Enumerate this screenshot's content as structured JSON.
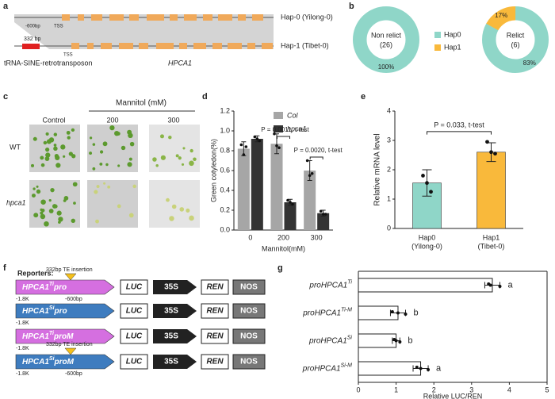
{
  "panel_labels": [
    "a",
    "b",
    "c",
    "d",
    "e",
    "f",
    "g"
  ],
  "gene_diagram": {
    "upstream": "-600bp",
    "tss_1": "TSS",
    "insertion": "332 bp",
    "tss_2": "TSS",
    "te": "tRNA-SINE-retrotransposon",
    "gene": "HPCA1",
    "haplotypes": [
      "Hap-0 (Yilong-0)",
      "Hap-1 (Tibet-0)"
    ]
  },
  "phenotype": {
    "control": "Control",
    "treatment": "Mannitol (mM)",
    "doses": [
      "200",
      "300"
    ],
    "genotypes": [
      "WT",
      "hpca1"
    ]
  },
  "reporters": {
    "title": "Reporters:",
    "insertion": "332bp TE insertion",
    "position": "-600bp",
    "start": "-1.8K",
    "parts": [
      "LUC",
      "35S",
      "REN",
      "NOS"
    ],
    "constructs": [
      {
        "gene": "HPCA1",
        "sup": "Ti",
        "suffix": "pro",
        "color": "#d56fe0",
        "te": true
      },
      {
        "gene": "HPCA1",
        "sup": "Si",
        "suffix": "pro",
        "color": "#3e7cbf",
        "te": false
      },
      {
        "gene": "HPCA1",
        "sup": "Ti",
        "suffix": "proM",
        "color": "#d56fe0",
        "te": false
      },
      {
        "gene": "HPCA1",
        "sup": "Si",
        "suffix": "proM",
        "color": "#3e7cbf",
        "te": true
      }
    ]
  },
  "chart_data": [
    {
      "type": "pie",
      "center_label": [
        "Non relict",
        "(26)"
      ],
      "categories": [
        "Hap0",
        "Hap1"
      ],
      "values": [
        100,
        0
      ],
      "value_labels": [
        "100%",
        null
      ],
      "colors": [
        "#8fd6c8",
        "#f9b93b"
      ]
    },
    {
      "type": "pie",
      "center_label": [
        "Relict",
        "(6)"
      ],
      "categories": [
        "Hap0",
        "Hap1"
      ],
      "values": [
        83,
        17
      ],
      "value_labels": [
        "83%",
        "17%"
      ],
      "colors": [
        "#8fd6c8",
        "#f9b93b"
      ]
    },
    {
      "type": "bar",
      "ylabel": "Green cotyledon(%)",
      "xlabel": "Mannitol(mM)",
      "categories": [
        "0",
        "200",
        "300"
      ],
      "series": [
        {
          "name": "Col",
          "color": "#a6a6a6",
          "values": [
            0.82,
            0.87,
            0.6
          ],
          "errors": [
            0.07,
            0.1,
            0.1
          ],
          "points": [
            [
              0.86,
              0.76,
              0.84
            ],
            [
              0.97,
              0.85,
              0.83
            ],
            [
              0.7,
              0.55,
              0.57
            ]
          ]
        },
        {
          "name": "hpca1",
          "color": "#333333",
          "values": [
            0.92,
            0.28,
            0.17
          ],
          "errors": [
            0.03,
            0.03,
            0.03
          ],
          "points": [
            [
              0.94,
              0.92,
              0.9
            ],
            [
              0.3,
              0.28,
              0.26
            ],
            [
              0.19,
              0.16,
              0.16
            ]
          ]
        }
      ],
      "annotations": [
        "P = 0.0011, t-test",
        "P = 0.0020, t-test"
      ],
      "ylim": [
        0,
        1.2
      ],
      "yticks": [
        {
          "value": 0,
          "label": "0.0"
        },
        0.2,
        0.4,
        0.6,
        0.8,
        {
          "value": 1,
          "label": "1.0"
        },
        1.2
      ]
    },
    {
      "type": "bar",
      "ylabel": "Relative mRNA level",
      "categories": [
        [
          "Hap0",
          "(Yilong-0)"
        ],
        [
          "Hap1",
          "(Tibet-0)"
        ]
      ],
      "values": [
        1.55,
        2.6
      ],
      "errors": [
        0.45,
        0.32
      ],
      "points": [
        [
          1.8,
          1.55,
          1.25
        ],
        [
          2.95,
          2.6,
          2.55
        ]
      ],
      "colors": [
        "#8fd6c8",
        "#f9b93b"
      ],
      "annotation": "P = 0.033, t-test",
      "ylim": [
        0,
        4
      ],
      "yticks": [
        0,
        1,
        2,
        3,
        4
      ]
    },
    {
      "type": "hbar",
      "xlabel": "Relative LUC/REN",
      "categories": [
        {
          "base": "proHPCA1",
          "sup": "Ti"
        },
        {
          "base": "proHPCA1",
          "sup": "Ti-M"
        },
        {
          "base": "proHPCA1",
          "sup": "Si"
        },
        {
          "base": "proHPCA1",
          "sup": "Si-M"
        }
      ],
      "values": [
        3.55,
        1.05,
        1.0,
        1.65
      ],
      "errors": [
        0.2,
        0.2,
        0.1,
        0.2
      ],
      "points": [
        [
          3.45,
          3.5,
          3.75
        ],
        [
          0.9,
          1.05,
          1.25
        ],
        [
          0.95,
          1.0,
          1.1
        ],
        [
          1.55,
          1.65,
          1.85
        ]
      ],
      "letters": [
        "a",
        "b",
        "b",
        "a"
      ],
      "xlim": [
        0,
        5
      ],
      "xticks": [
        0,
        1,
        2,
        3,
        4,
        5
      ]
    }
  ]
}
